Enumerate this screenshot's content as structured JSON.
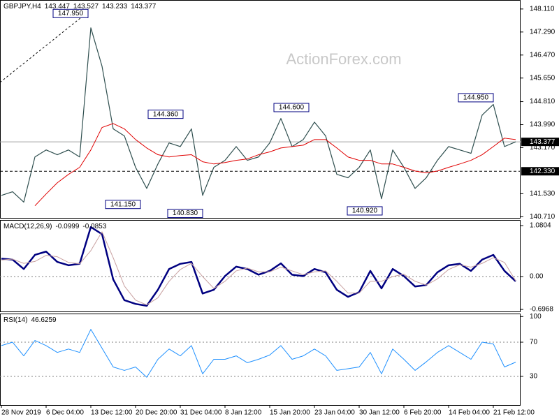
{
  "chart_data": [
    {
      "type": "line",
      "title": "GBPJPY,H4",
      "readings": [
        143.447,
        143.527,
        143.233,
        143.377
      ],
      "watermark": "ActionForex.com",
      "ylim": [
        140.67,
        148.43
      ],
      "yticks": [
        {
          "value": 148.11,
          "label": "148.110"
        },
        {
          "value": 147.29,
          "label": "147.290"
        },
        {
          "value": 146.47,
          "label": "146.470"
        },
        {
          "value": 145.65,
          "label": "145.650"
        },
        {
          "value": 144.81,
          "label": "144.810"
        },
        {
          "value": 143.99,
          "label": "143.990"
        },
        {
          "value": 143.17,
          "label": "143.170"
        },
        {
          "value": 141.53,
          "label": "141.530"
        },
        {
          "value": 140.71,
          "label": "140.710"
        }
      ],
      "hlines": [
        {
          "value": 143.377,
          "label": "143.377",
          "style": "solid",
          "color": "#a0a0a0"
        },
        {
          "value": 142.33,
          "label": "142.330",
          "style": "dashed",
          "color": "#000000"
        }
      ],
      "annotations": [
        {
          "value": 147.95,
          "label": "147.950"
        },
        {
          "value": 144.36,
          "label": "144.360"
        },
        {
          "value": 141.15,
          "label": "141.150"
        },
        {
          "value": 140.83,
          "label": "140.830"
        },
        {
          "value": 144.6,
          "label": "144.600"
        },
        {
          "value": 140.92,
          "label": "140.920"
        },
        {
          "value": 144.95,
          "label": "144.950"
        }
      ],
      "series": [
        {
          "color": "#2f4f4f",
          "width": 1.2,
          "values": [
            141.47,
            141.6,
            141.23,
            142.84,
            143.09,
            142.92,
            143.09,
            142.84,
            147.44,
            146.07,
            143.84,
            143.59,
            142.47,
            141.72,
            142.59,
            143.34,
            143.21,
            143.84,
            141.47,
            142.47,
            142.72,
            143.21,
            142.72,
            142.84,
            143.34,
            144.21,
            143.21,
            143.46,
            144.08,
            143.59,
            142.22,
            142.1,
            142.47,
            143.09,
            141.35,
            143.09,
            142.47,
            141.72,
            142.1,
            142.72,
            143.21,
            143.09,
            142.97,
            144.33,
            144.71,
            143.21,
            143.38
          ]
        },
        {
          "color": "#e00000",
          "width": 1,
          "values": [
            null,
            null,
            null,
            141.1,
            141.52,
            141.92,
            142.22,
            142.47,
            143.09,
            143.89,
            144.03,
            143.84,
            143.46,
            143.16,
            142.92,
            142.84,
            142.89,
            142.92,
            142.67,
            142.59,
            142.64,
            142.72,
            142.77,
            142.92,
            143.02,
            143.16,
            143.21,
            143.26,
            143.46,
            143.46,
            143.16,
            142.84,
            142.72,
            142.72,
            142.59,
            142.59,
            142.47,
            142.34,
            142.27,
            142.34,
            142.47,
            142.59,
            142.72,
            142.92,
            143.21,
            143.51,
            143.46
          ]
        }
      ]
    },
    {
      "type": "line",
      "title": "MACD(12,26,9)",
      "readings": [
        -0.0999,
        -0.0853
      ],
      "ylim": [
        -0.74,
        1.2
      ],
      "yticks": [
        1.0804,
        {
          "value": 0,
          "label": "0.00"
        },
        -0.6968
      ],
      "levels": [
        0
      ],
      "series": [
        {
          "color": "#000080",
          "width": 2.5,
          "values": [
            0.38,
            0.36,
            0.16,
            0.46,
            0.53,
            0.31,
            0.24,
            0.27,
            1.05,
            0.9,
            -0.06,
            -0.5,
            -0.58,
            -0.62,
            -0.28,
            0.16,
            0.27,
            0.31,
            -0.36,
            -0.28,
            0.01,
            0.21,
            0.16,
            0.04,
            0.12,
            0.28,
            0.04,
            0.01,
            0.16,
            0.09,
            -0.28,
            -0.43,
            -0.33,
            0.12,
            -0.25,
            0.16,
            0.01,
            -0.21,
            -0.18,
            0.09,
            0.24,
            0.27,
            0.12,
            0.36,
            0.46,
            0.12,
            -0.1
          ]
        },
        {
          "color": "#c8a0a0",
          "width": 1,
          "values": [
            0.35,
            0.37,
            0.28,
            0.32,
            0.45,
            0.42,
            0.3,
            0.27,
            0.55,
            0.95,
            0.4,
            -0.2,
            -0.5,
            -0.6,
            -0.45,
            -0.1,
            0.15,
            0.28,
            0.0,
            -0.25,
            -0.1,
            0.12,
            0.18,
            0.1,
            0.1,
            0.2,
            0.12,
            0.04,
            0.1,
            0.12,
            -0.1,
            -0.35,
            -0.35,
            -0.1,
            -0.1,
            0.0,
            0.05,
            -0.1,
            -0.18,
            -0.05,
            0.15,
            0.25,
            0.2,
            0.28,
            0.4,
            0.3,
            -0.09
          ]
        }
      ]
    },
    {
      "type": "line",
      "title": "RSI(14)",
      "readings": [
        46.6259
      ],
      "ylim": [
        -3.5,
        103.5
      ],
      "yticks": [
        100,
        70,
        30
      ],
      "levels": [
        70,
        30
      ],
      "categories": [
        "28 Nov 2019",
        null,
        null,
        null,
        "6 Dec 04:00",
        null,
        null,
        null,
        "13 Dec 12:00",
        null,
        null,
        null,
        "20 Dec 20:00",
        null,
        null,
        null,
        "31 Dec 04:00",
        null,
        null,
        null,
        "8 Jan 12:00",
        null,
        null,
        null,
        "15 Jan 20:00",
        null,
        null,
        null,
        "23 Jan 04:00",
        null,
        null,
        null,
        "30 Jan 12:00",
        null,
        null,
        null,
        "6 Feb 20:00",
        null,
        null,
        null,
        "14 Feb 04:00",
        null,
        null,
        null,
        "21 Feb 12:00",
        null,
        null
      ],
      "series": [
        {
          "color": "#1e90ff",
          "width": 1,
          "values": [
            66,
            70,
            54,
            72,
            66,
            58,
            62,
            58,
            85,
            63,
            41,
            37,
            41,
            29,
            50,
            62,
            54,
            66,
            33,
            50,
            50,
            54,
            46,
            50,
            55,
            66,
            50,
            54,
            62,
            54,
            37,
            39,
            41,
            58,
            33,
            62,
            50,
            37,
            47,
            58,
            66,
            58,
            50,
            70,
            68,
            41,
            46.63
          ]
        }
      ]
    }
  ]
}
